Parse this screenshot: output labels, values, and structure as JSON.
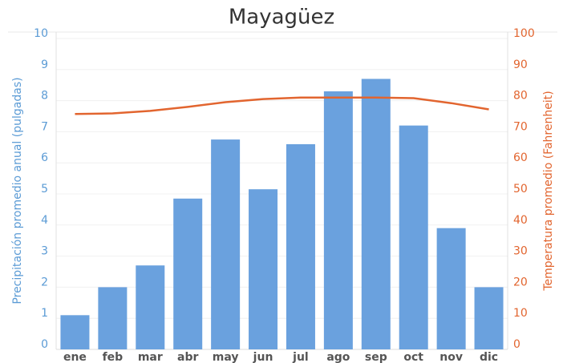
{
  "chart_data": {
    "type": "bar+line",
    "title": "Mayagüez",
    "ylabel": "Precipitación promedio anual (pulgadas)",
    "y2label": "Temperatura promedio (Fahrenheit)",
    "categories": [
      "ene",
      "feb",
      "mar",
      "abr",
      "may",
      "jun",
      "jul",
      "ago",
      "sep",
      "oct",
      "nov",
      "dic"
    ],
    "series": [
      {
        "type": "bar",
        "color": "#6aa1de",
        "values": [
          1.1,
          2.0,
          2.7,
          4.85,
          6.75,
          5.15,
          6.6,
          8.3,
          8.7,
          7.2,
          3.9,
          2.0
        ]
      },
      {
        "type": "line",
        "axis": "y2",
        "color": "#e2652f",
        "values": [
          75.7,
          75.9,
          76.7,
          78,
          79.5,
          80.5,
          81,
          81,
          81,
          80.8,
          79.2,
          77.2
        ]
      }
    ],
    "ylim": [
      0,
      10
    ],
    "yticks": [
      0,
      1,
      2,
      3,
      4,
      5,
      6,
      7,
      8,
      9,
      10
    ],
    "y2lim": [
      0,
      100
    ],
    "y2ticks": [
      0,
      10,
      20,
      30,
      40,
      50,
      60,
      70,
      80,
      90,
      100
    ],
    "grid": true
  }
}
